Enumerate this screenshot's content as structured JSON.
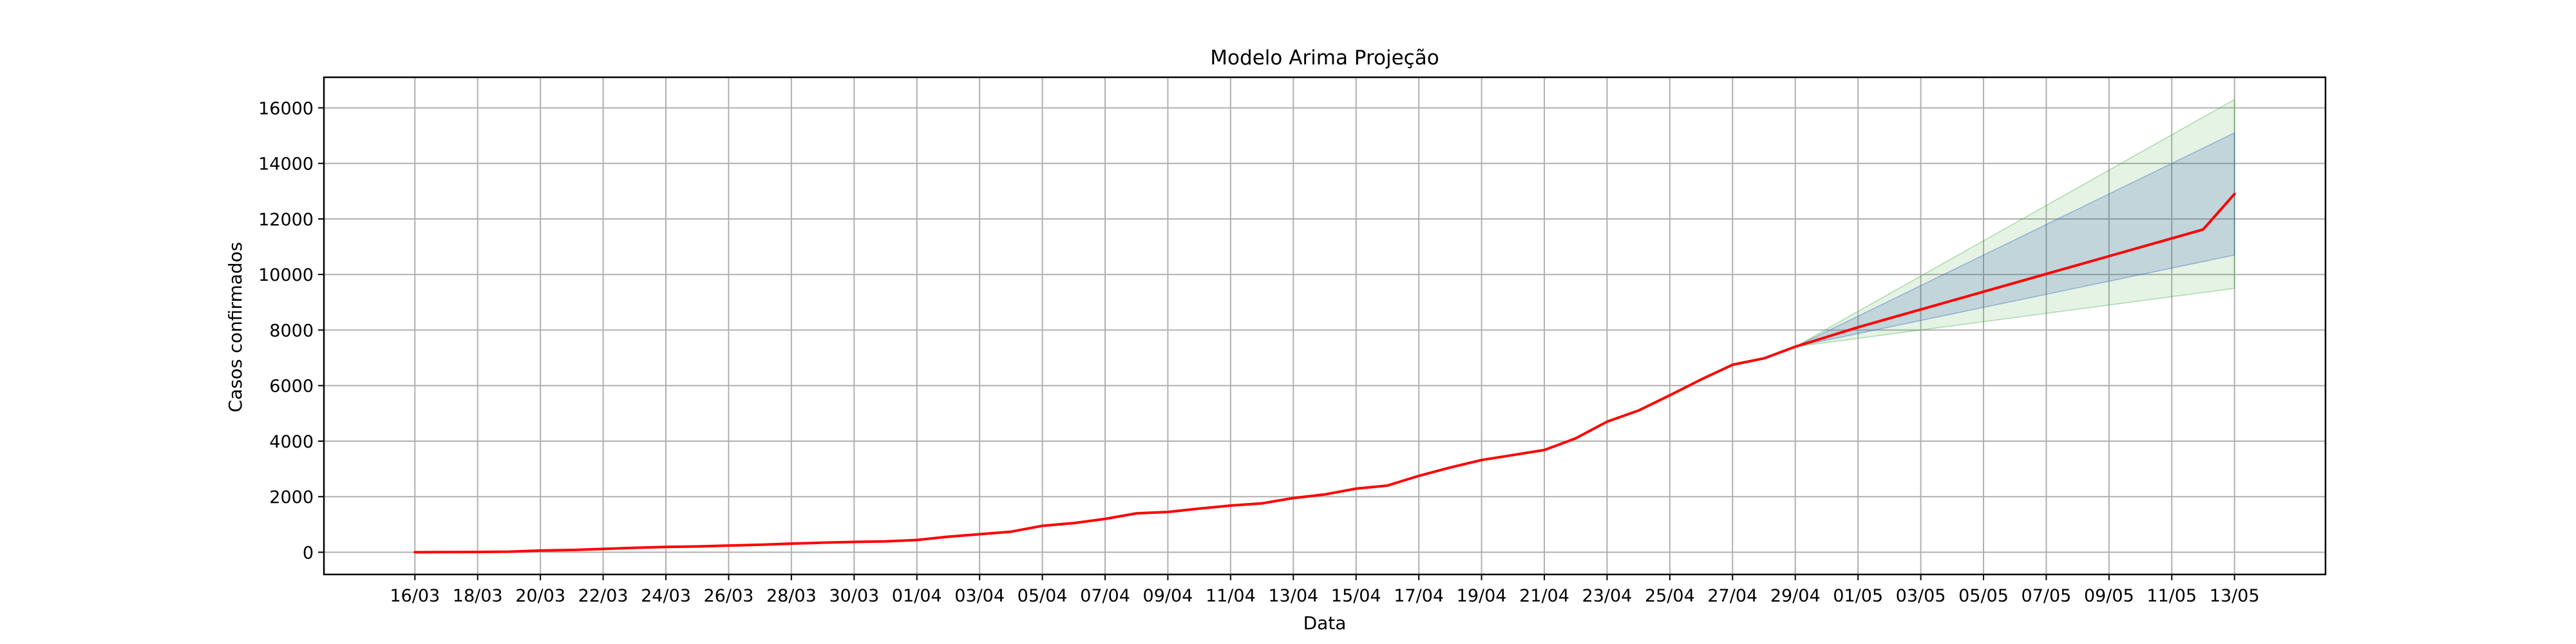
{
  "chart_data": {
    "type": "line",
    "title": "Modelo Arima Projeção",
    "xlabel": "Data",
    "ylabel": "Casos confirmados",
    "grid": true,
    "xlim": [
      -2.9,
      60.9
    ],
    "ylim": [
      -800,
      17100
    ],
    "x_ticks": [
      "16/03",
      "18/03",
      "20/03",
      "22/03",
      "24/03",
      "26/03",
      "28/03",
      "30/03",
      "01/04",
      "03/04",
      "05/04",
      "07/04",
      "09/04",
      "11/04",
      "13/04",
      "15/04",
      "17/04",
      "19/04",
      "21/04",
      "23/04",
      "25/04",
      "27/04",
      "29/04",
      "01/05",
      "03/05",
      "05/05",
      "07/05",
      "09/05",
      "11/05",
      "13/05"
    ],
    "y_ticks": [
      0,
      2000,
      4000,
      6000,
      8000,
      10000,
      12000,
      14000,
      16000
    ],
    "series": [
      {
        "color": "#ff0000",
        "values": [
          [
            "16/03",
            0
          ],
          [
            "17/03",
            5
          ],
          [
            "18/03",
            10
          ],
          [
            "19/03",
            20
          ],
          [
            "20/03",
            60
          ],
          [
            "21/03",
            80
          ],
          [
            "22/03",
            120
          ],
          [
            "23/03",
            160
          ],
          [
            "24/03",
            190
          ],
          [
            "25/03",
            210
          ],
          [
            "26/03",
            240
          ],
          [
            "27/03",
            270
          ],
          [
            "28/03",
            310
          ],
          [
            "29/03",
            345
          ],
          [
            "30/03",
            370
          ],
          [
            "31/03",
            390
          ],
          [
            "01/04",
            440
          ],
          [
            "02/04",
            560
          ],
          [
            "03/04",
            650
          ],
          [
            "04/04",
            740
          ],
          [
            "05/04",
            950
          ],
          [
            "06/04",
            1050
          ],
          [
            "07/04",
            1200
          ],
          [
            "08/04",
            1400
          ],
          [
            "09/04",
            1450
          ],
          [
            "10/04",
            1570
          ],
          [
            "11/04",
            1680
          ],
          [
            "12/04",
            1760
          ],
          [
            "13/04",
            1950
          ],
          [
            "14/04",
            2080
          ],
          [
            "15/04",
            2290
          ],
          [
            "16/04",
            2400
          ],
          [
            "17/04",
            2750
          ],
          [
            "18/04",
            3050
          ],
          [
            "19/04",
            3320
          ],
          [
            "20/04",
            3500
          ],
          [
            "21/04",
            3680
          ],
          [
            "22/04",
            4100
          ],
          [
            "23/04",
            4700
          ],
          [
            "24/04",
            5100
          ],
          [
            "25/04",
            5650
          ],
          [
            "26/04",
            6220
          ],
          [
            "27/04",
            6750
          ],
          [
            "28/04",
            6980
          ],
          [
            "29/04",
            7400
          ],
          [
            "30/04",
            7750
          ],
          [
            "01/05",
            8100
          ],
          [
            "02/05",
            8420
          ],
          [
            "03/05",
            8740
          ],
          [
            "04/05",
            9060
          ],
          [
            "05/05",
            9380
          ],
          [
            "06/05",
            9700
          ],
          [
            "07/05",
            10020
          ],
          [
            "08/05",
            10340
          ],
          [
            "09/05",
            10660
          ],
          [
            "10/05",
            10980
          ],
          [
            "11/05",
            11300
          ],
          [
            "12/05",
            11620
          ],
          [
            "13/05",
            12900
          ]
        ]
      }
    ],
    "bands": [
      {
        "color": "#2ca02c",
        "opacity": 0.13,
        "x": [
          "29/04",
          "13/05"
        ],
        "lower": [
          7400,
          9500
        ],
        "upper": [
          7400,
          16300
        ]
      },
      {
        "color": "#1f4fb4",
        "opacity": 0.18,
        "x": [
          "29/04",
          "13/05"
        ],
        "lower": [
          7400,
          10700
        ],
        "upper": [
          7400,
          15100
        ]
      }
    ]
  }
}
